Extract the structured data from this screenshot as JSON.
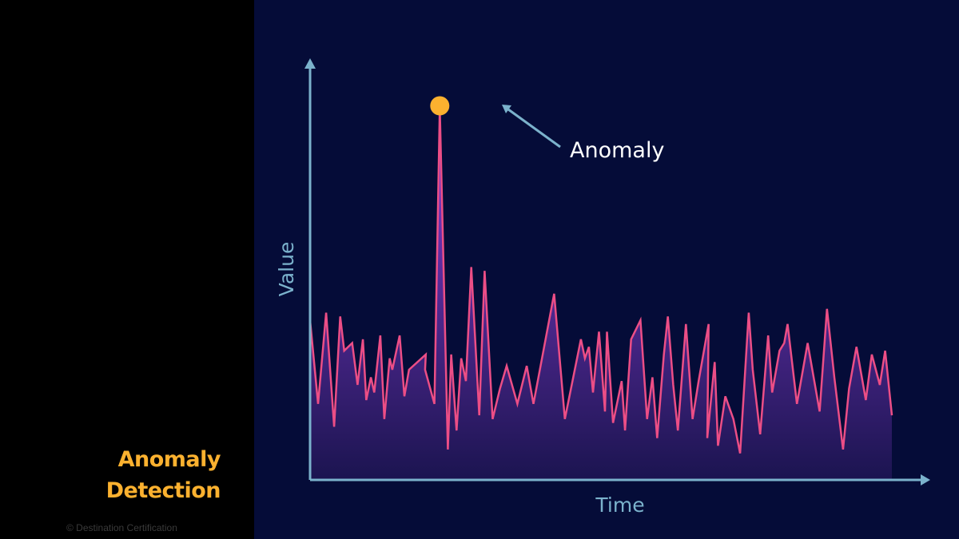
{
  "sidebar": {
    "title_line1": "Anomaly",
    "title_line2": "Detection",
    "copyright": "© Destination Certification"
  },
  "colors": {
    "background": "#050c38",
    "axis": "#7bb2cc",
    "line": "#ec4e86",
    "fill_top": "#8a3fd8",
    "fill_bottom": "#1b1450",
    "anomaly_point": "#fbb12f",
    "title": "#fbb12f"
  },
  "chart_data": {
    "type": "area",
    "xlabel": "Time",
    "ylabel": "Value",
    "annotation": {
      "text": "Anomaly",
      "target_index": 19
    },
    "x": [
      0,
      1,
      2,
      3,
      4,
      5,
      6,
      7,
      8,
      9,
      10,
      11,
      12,
      13,
      14,
      15,
      16,
      17,
      18,
      19,
      20,
      21,
      22,
      23,
      24,
      25,
      26,
      27,
      28,
      29,
      30,
      31,
      32,
      33,
      34,
      35,
      36,
      37,
      38,
      39,
      40,
      41,
      42,
      43,
      44,
      45,
      46,
      47,
      48,
      49,
      50,
      51,
      52,
      53,
      54,
      55,
      56,
      57,
      58,
      59,
      60,
      61,
      62,
      63,
      64,
      65,
      66,
      67,
      68,
      69,
      70,
      71,
      72,
      73,
      74,
      75,
      76,
      77,
      78,
      79,
      80,
      81,
      82,
      83,
      84,
      85,
      86,
      87,
      88
    ],
    "values": [
      42,
      20,
      44,
      14,
      43,
      34,
      36,
      25,
      37,
      21,
      27,
      23,
      38,
      16,
      32,
      29,
      38,
      22,
      29,
      33,
      29,
      20,
      98,
      8,
      33,
      13,
      32,
      26,
      56,
      17,
      55,
      16,
      24,
      30,
      20,
      30,
      20,
      49,
      16,
      37,
      32,
      35,
      23,
      39,
      18,
      39,
      15,
      26,
      13,
      37,
      42,
      16,
      27,
      11,
      33,
      43,
      25,
      13,
      41,
      16,
      26,
      41,
      11,
      31,
      9,
      22,
      16,
      7,
      44,
      29,
      12,
      38,
      23,
      34,
      36,
      41,
      20,
      36,
      18,
      45,
      27,
      8,
      24,
      35,
      21,
      33,
      25,
      34,
      17
    ],
    "x_visible": [
      0,
      1.2,
      2.4,
      3.6,
      4.5,
      5.1,
      6.3,
      7.1,
      7.9,
      8.4,
      9.1,
      9.6,
      10.5,
      11.1,
      11.9,
      12.3,
      13.4,
      14.1,
      14.8,
      17.3,
      17.2,
      18.6,
      19.4,
      20.6,
      21.1,
      21.9,
      22.6,
      23.3,
      24.1,
      25.3,
      26.1,
      27.3,
      28.4,
      29.4,
      31,
      32.4,
      33.4,
      36.5,
      38.1,
      40.5,
      41.1,
      41.7,
      42.3,
      43.2,
      44.1,
      44.4,
      45.3,
      46.6,
      47.1,
      48,
      49.4,
      50.4,
      51.2,
      51.9,
      52.9,
      53.5,
      54.3,
      55,
      56.2,
      57.2,
      58.1,
      59.6,
      59.4,
      60.5,
      61,
      62.1,
      63.3,
      64.3,
      65.6,
      66.2,
      67.3,
      68.5,
      69.1,
      70.2,
      70.9,
      71.4,
      72.8,
      74.4,
      76.2,
      77.3,
      78.4,
      79.7,
      80.6,
      81.7,
      83.1,
      84,
      85.2,
      86,
      87
    ],
    "y_visible": [
      42,
      20,
      44,
      14,
      43,
      34,
      36,
      25,
      37,
      21,
      27,
      23,
      38,
      16,
      32,
      29,
      38,
      22,
      29,
      33,
      29,
      20,
      98,
      8,
      33,
      13,
      32,
      26,
      56,
      17,
      55,
      16,
      24,
      30,
      20,
      30,
      20,
      49,
      16,
      37,
      32,
      35,
      23,
      39,
      18,
      39,
      15,
      26,
      13,
      37,
      42,
      16,
      27,
      11,
      33,
      43,
      25,
      13,
      41,
      16,
      26,
      41,
      11,
      31,
      9,
      22,
      16,
      7,
      44,
      29,
      12,
      38,
      23,
      34,
      36,
      41,
      20,
      36,
      18,
      45,
      27,
      8,
      24,
      35,
      21,
      33,
      25,
      34,
      17
    ]
  }
}
